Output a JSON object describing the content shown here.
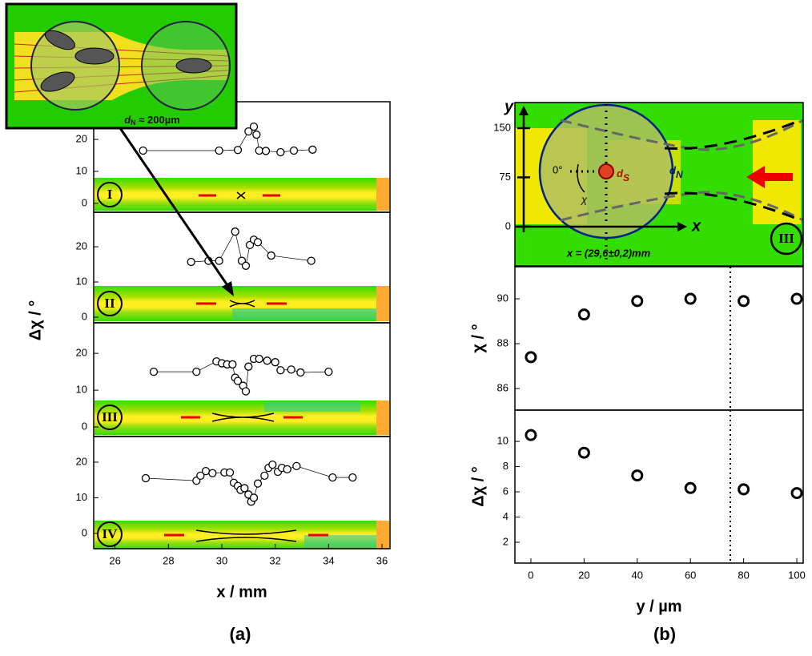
{
  "chart_data": [
    {
      "type": "scatter",
      "label": "I",
      "connect": true,
      "x": [
        27.05,
        29.9,
        30.6,
        31.0,
        31.2,
        31.3,
        31.4,
        31.65,
        32.2,
        32.7,
        33.4
      ],
      "y": [
        16.5,
        16.5,
        16.7,
        22.5,
        24,
        21.5,
        16.5,
        16.4,
        16,
        16.5,
        16.8
      ],
      "xlim": [
        25.2,
        36.3
      ],
      "ylim": [
        -2.8,
        31.8
      ],
      "yticks": [
        0,
        10,
        20
      ]
    },
    {
      "type": "scatter",
      "label": "II",
      "connect": true,
      "x": [
        28.85,
        29.5,
        29.9,
        30.5,
        30.75,
        30.9,
        31.05,
        31.2,
        31.35,
        31.85,
        33.35
      ],
      "y": [
        15.7,
        16,
        16,
        24.3,
        16,
        14.6,
        20.5,
        22,
        21.3,
        17.5,
        16
      ],
      "xlim": [
        25.2,
        36.3
      ],
      "ylim": [
        -1.6,
        29.8
      ],
      "yticks": [
        0,
        10,
        20
      ]
    },
    {
      "type": "scatter",
      "label": "III",
      "connect": true,
      "x": [
        27.45,
        29.05,
        29.8,
        30.0,
        30.2,
        30.4,
        30.5,
        30.6,
        30.8,
        30.9,
        31.0,
        31.2,
        31.4,
        31.7,
        32.0,
        32.2,
        32.6,
        32.95,
        34.0
      ],
      "y": [
        15,
        15,
        17.8,
        17.3,
        17,
        17,
        13.4,
        12.5,
        11.2,
        9.7,
        16.4,
        18.5,
        18.5,
        18,
        17.6,
        15.4,
        15.6,
        14.8,
        15
      ],
      "xlim": [
        25.2,
        36.3
      ],
      "ylim": [
        -2.6,
        28.3
      ],
      "yticks": [
        0,
        10,
        20
      ]
    },
    {
      "type": "scatter",
      "label": "IV",
      "connect": true,
      "x": [
        27.15,
        29.05,
        29.2,
        29.4,
        29.65,
        30.1,
        30.3,
        30.45,
        30.6,
        30.7,
        30.85,
        31.0,
        31.1,
        31.2,
        31.35,
        31.6,
        31.75,
        31.9,
        32.1,
        32.25,
        32.45,
        32.8,
        34.15,
        34.9
      ],
      "y": [
        15.5,
        14.8,
        16.2,
        17.5,
        16.9,
        17.1,
        17.1,
        14.2,
        13.3,
        12.2,
        12.7,
        10.9,
        8.9,
        10,
        14,
        16.2,
        18.4,
        19.3,
        17.3,
        18.4,
        18,
        18.9,
        15.7,
        15.7
      ],
      "xlim": [
        25.2,
        36.3
      ],
      "ylim": [
        -4.3,
        27.2
      ],
      "yticks": [
        0,
        10,
        20
      ],
      "xticks": [
        26,
        28,
        30,
        32,
        34,
        36
      ],
      "xlabel": "x / mm"
    },
    {
      "type": "scatter",
      "connect": false,
      "ylabel": "χ / °",
      "x": [
        0,
        20,
        40,
        60,
        80,
        100
      ],
      "y": [
        87.4,
        89.3,
        89.9,
        90.0,
        89.9,
        90.0
      ],
      "xlim": [
        -6,
        102.4
      ],
      "ylim": [
        85.04,
        91.43
      ],
      "yticks": [
        86,
        88,
        90
      ],
      "vline": 75
    },
    {
      "type": "scatter",
      "connect": false,
      "ylabel": "Δχ / °",
      "x": [
        0,
        20,
        40,
        60,
        80,
        100
      ],
      "y": [
        10.5,
        9.1,
        7.3,
        6.3,
        6.2,
        5.9
      ],
      "xlim": [
        -6,
        102.4
      ],
      "ylim": [
        0.35,
        12.48
      ],
      "yticks": [
        2,
        4,
        6,
        8,
        10
      ],
      "vline": 75,
      "xticks": [
        0,
        20,
        40,
        60,
        80,
        100
      ],
      "xlabel": "y / µm"
    }
  ],
  "figure": {
    "panel_a": {
      "ylabel": "Δχ / °",
      "caption": "(a)",
      "inset_label": [
        "d",
        "N",
        " ≈ 200µm"
      ]
    },
    "panel_b": {
      "caption": "(b)",
      "map": {
        "y_axis": "y",
        "x_axis": "x",
        "ylim": [
          -60,
          189
        ],
        "yticks": [
          0,
          75,
          150
        ],
        "angle": "0°",
        "chi": "χ",
        "ds": [
          "d",
          "S"
        ],
        "dn": [
          "d",
          "N"
        ],
        "position": "x = (29,6±0,2)mm",
        "region": "III"
      }
    }
  }
}
